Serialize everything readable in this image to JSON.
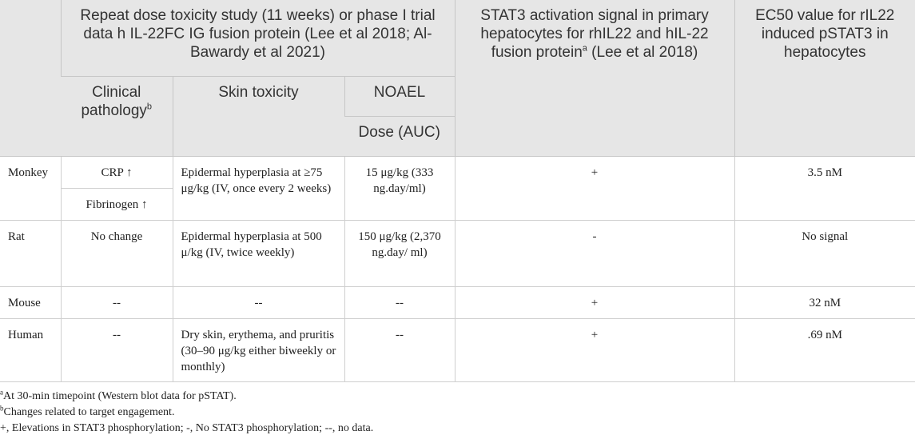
{
  "header": {
    "corner": "",
    "group_title": "Repeat dose toxicity study (11 weeks) or phase I trial data h IL-22FC IG fusion protein (Lee et al 2018; Al-Bawardy et al 2021)",
    "stat3_title": "STAT3 activation signal in primary hepatocytes for rhIL22 and hIL-22 fusion protein",
    "stat3_sup": "a",
    "stat3_cite": " (Lee et al 2018)",
    "ec50_title": "EC50 value for rIL22 induced pSTAT3 in hepatocytes",
    "clin_path": "Clinical pathology",
    "clin_path_sup": "b",
    "skin_tox": "Skin toxicity",
    "noael": "NOAEL",
    "dose_auc": "Dose (AUC)"
  },
  "rows": {
    "monkey": {
      "species": "Monkey",
      "clin1": "CRP ↑",
      "clin2": "Fibrinogen ↑",
      "skin": "Epidermal hyperplasia at ≥75 μg/kg (IV, once every 2 weeks)",
      "dose": "15 μg/kg (333 ng.day/ml)",
      "stat3": "+",
      "ec50": "3.5 nM"
    },
    "rat": {
      "species": "Rat",
      "clin": "No change",
      "skin": "Epidermal hyperplasia at 500 μ/kg (IV, twice weekly)",
      "dose": "150 μg/kg (2,370 ng.day/ ml)",
      "stat3": "-",
      "ec50": "No signal"
    },
    "mouse": {
      "species": "Mouse",
      "clin": "--",
      "skin": "--",
      "dose": "--",
      "stat3": "+",
      "ec50": "32 nM"
    },
    "human": {
      "species": "Human",
      "clin": "--",
      "skin": "Dry skin, erythema, and pruritis (30–90 μg/kg either biweekly or monthly)",
      "dose": "--",
      "stat3": "+",
      "ec50": ".69 nM"
    }
  },
  "footnotes": {
    "a_mark": "a",
    "a_text": "At 30-min timepoint (Western blot data for pSTAT).",
    "b_mark": "b",
    "b_text": "Changes related to target engagement.",
    "legend": "+, Elevations in STAT3 phosphorylation; -, No STAT3 phosphorylation; --, no data."
  }
}
